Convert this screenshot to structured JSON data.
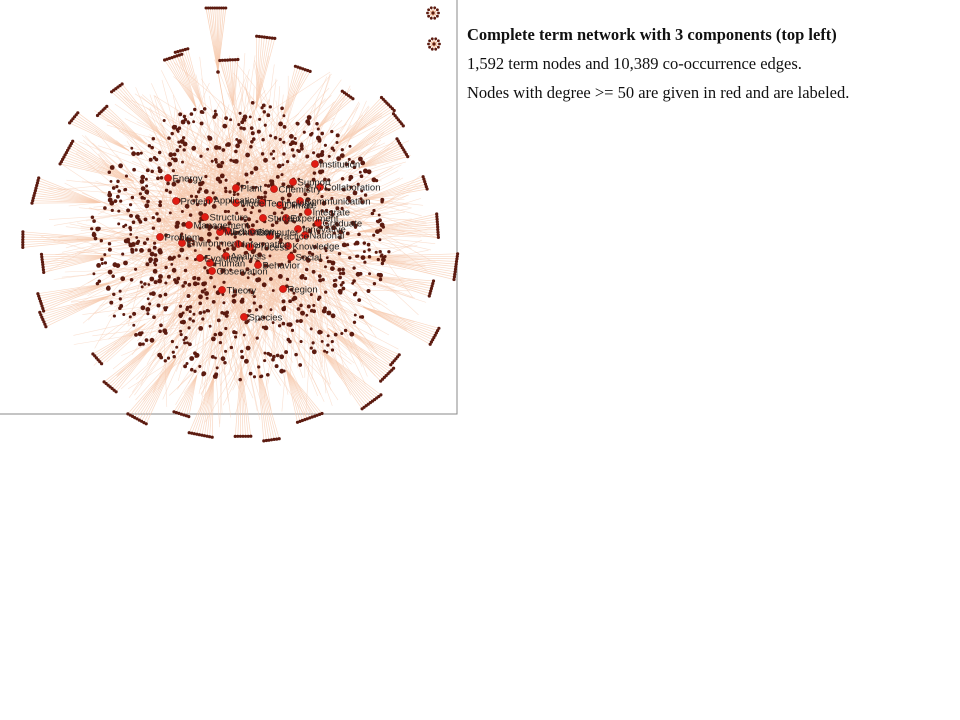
{
  "caption": {
    "title": "Complete term network with 3 components (top left)",
    "line2": "1,592 term nodes and 10,389 co-occurrence edges.",
    "line3": "Nodes with degree >= 50 are given in red and are labeled."
  },
  "network": {
    "components": 3,
    "term_nodes": 1592,
    "edges": 10389,
    "degree_threshold": 50,
    "colors": {
      "edge": "#f6c9ad",
      "node": "#5c1b10",
      "hub_node": "#e01b12",
      "frame": "#888888",
      "minor_component_edge": "#e89a6a"
    },
    "labeled_hubs": [
      "Institution",
      "Support",
      "Collaboration",
      "Energy",
      "Plant",
      "Integrate",
      "Graduate",
      "National",
      "Knowledge",
      "Social",
      "Region",
      "Species",
      "Behavior",
      "Theory",
      "Problem",
      "Innovative",
      "Structure",
      "Model",
      "Environment",
      "Management",
      "Mechanism",
      "Practice",
      "Analysis",
      "Protein",
      "Student",
      "Process",
      "Communication",
      "Human",
      "Chemistry",
      "Education",
      "Application",
      "Evolution",
      "Technology",
      "Experiment",
      "Information",
      "Observation",
      "Computer",
      "Climate"
    ]
  }
}
